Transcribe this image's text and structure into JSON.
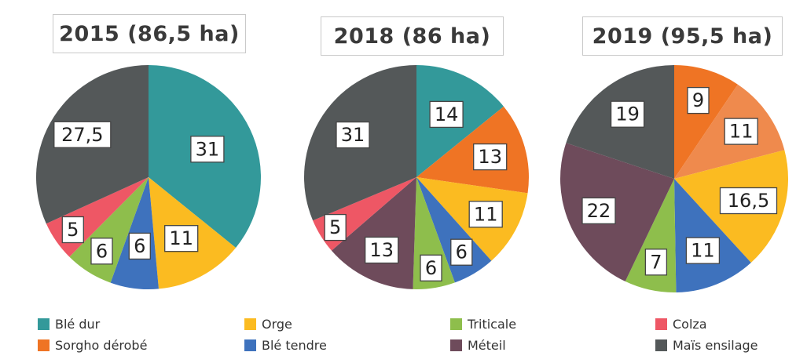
{
  "legend": {
    "items": [
      {
        "label": "Blé dur",
        "color": "#33999a"
      },
      {
        "label": "Orge",
        "color": "#fbbb21"
      },
      {
        "label": "Triticale",
        "color": "#8ebe4c"
      },
      {
        "label": "Colza",
        "color": "#ee5765"
      },
      {
        "label": "Sorgho dérobé",
        "color": "#ef7424"
      },
      {
        "label": "Blé tendre",
        "color": "#3e72bd"
      },
      {
        "label": "Méteil",
        "color": "#6e4b5b"
      },
      {
        "label": "Maïs ensilage",
        "color": "#545859"
      }
    ]
  },
  "chart_data": [
    {
      "type": "pie",
      "title": "2015 (86,5 ha)",
      "slices": [
        {
          "label": "Blé dur",
          "value": 31,
          "display": "31",
          "color": "#33999a"
        },
        {
          "label": "Orge",
          "value": 11,
          "display": "11",
          "color": "#fbbb21"
        },
        {
          "label": "Blé tendre",
          "value": 6,
          "display": "6",
          "color": "#3e72bd"
        },
        {
          "label": "Triticale",
          "value": 6,
          "display": "6",
          "color": "#8ebe4c"
        },
        {
          "label": "Colza",
          "value": 5,
          "display": "5",
          "color": "#ee5765"
        },
        {
          "label": "Maïs ensilage",
          "value": 27.5,
          "display": "27,5",
          "color": "#545859"
        }
      ]
    },
    {
      "type": "pie",
      "title": "2018 (86 ha)",
      "slices": [
        {
          "label": "Blé dur",
          "value": 14,
          "display": "14",
          "color": "#33999a"
        },
        {
          "label": "Sorgho dérobé",
          "value": 13,
          "display": "13",
          "color": "#ef7424"
        },
        {
          "label": "Orge",
          "value": 11,
          "display": "11",
          "color": "#fbbb21"
        },
        {
          "label": "Blé tendre",
          "value": 6,
          "display": "6",
          "color": "#3e72bd"
        },
        {
          "label": "Triticale",
          "value": 6,
          "display": "6",
          "color": "#8ebe4c"
        },
        {
          "label": "Méteil",
          "value": 13,
          "display": "13",
          "color": "#6e4b5b"
        },
        {
          "label": "Colza",
          "value": 5,
          "display": "5",
          "color": "#ee5765"
        },
        {
          "label": "Maïs ensilage",
          "value": 31,
          "display": "31",
          "color": "#545859"
        }
      ]
    },
    {
      "type": "pie",
      "title": "2019 (95,5 ha)",
      "slices": [
        {
          "label": "Sorgho dérobé",
          "value": 9,
          "display": "9",
          "color": "#ef7424"
        },
        {
          "label": "Sorgho dérobé",
          "value": 11,
          "display": "11",
          "color": "#ef8a4d"
        },
        {
          "label": "Orge",
          "value": 16.5,
          "display": "16,5",
          "color": "#fbbb21"
        },
        {
          "label": "Blé tendre",
          "value": 11,
          "display": "11",
          "color": "#3e72bd"
        },
        {
          "label": "Triticale",
          "value": 7,
          "display": "7",
          "color": "#8ebe4c"
        },
        {
          "label": "Méteil",
          "value": 22,
          "display": "22",
          "color": "#6e4b5b"
        },
        {
          "label": "Maïs ensilage",
          "value": 19,
          "display": "19",
          "color": "#545859"
        }
      ]
    }
  ]
}
